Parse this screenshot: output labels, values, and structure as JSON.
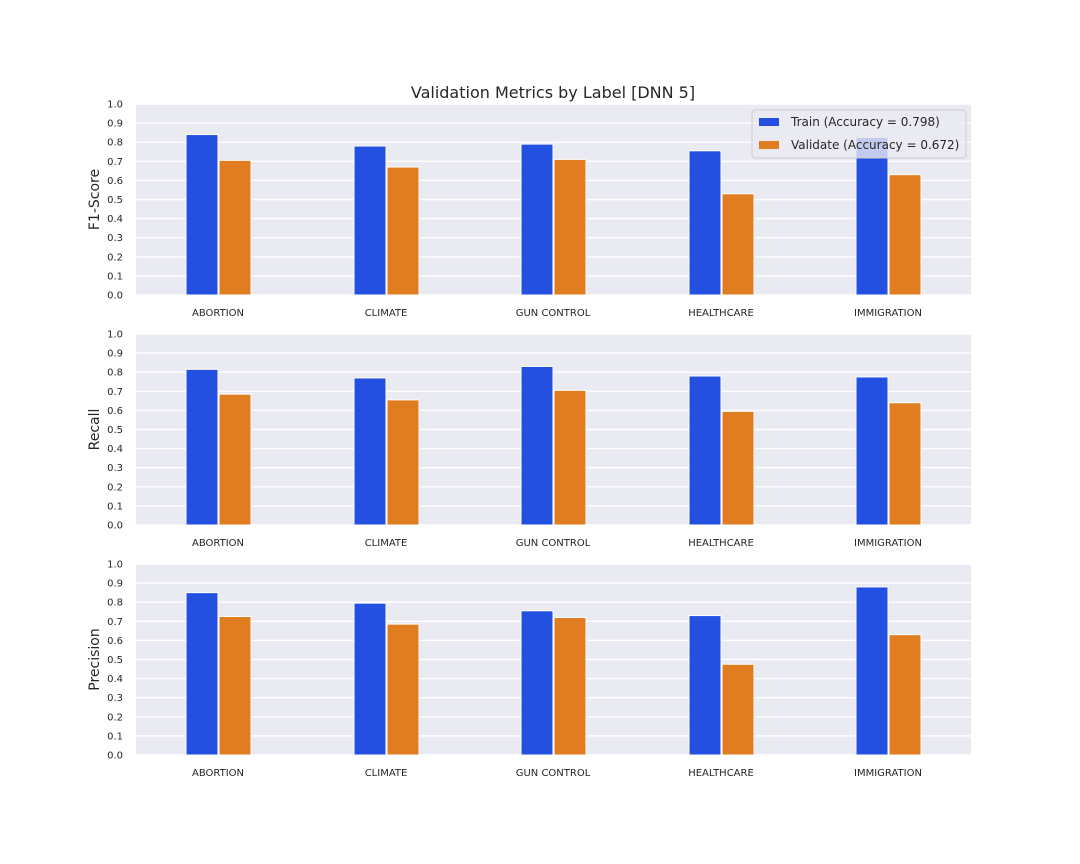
{
  "chart_data": {
    "type": "bar",
    "title": "Validation Metrics by Label [DNN 5]",
    "categories": [
      "ABORTION",
      "CLIMATE",
      "GUN CONTROL",
      "HEALTHCARE",
      "IMMIGRATION"
    ],
    "yticks": [
      "0.0",
      "0.1",
      "0.2",
      "0.3",
      "0.4",
      "0.5",
      "0.6",
      "0.7",
      "0.8",
      "0.9",
      "1.0"
    ],
    "ylim": [
      0,
      1
    ],
    "grid": true,
    "legend_position": "top-right",
    "legend": [
      {
        "label": "Train (Accuracy = 0.798)",
        "color": "#2350e0"
      },
      {
        "label": "Validate (Accuracy = 0.672)",
        "color": "#e07d21"
      }
    ],
    "panels": [
      {
        "ylabel": "F1-Score",
        "series": [
          {
            "name": "Train",
            "color": "#2350e0",
            "values": [
              0.84,
              0.78,
              0.79,
              0.755,
              0.825
            ]
          },
          {
            "name": "Validate",
            "color": "#e07d21",
            "values": [
              0.705,
              0.67,
              0.71,
              0.53,
              0.63
            ]
          }
        ]
      },
      {
        "ylabel": "Recall",
        "series": [
          {
            "name": "Train",
            "color": "#2350e0",
            "values": [
              0.815,
              0.77,
              0.83,
              0.78,
              0.775
            ]
          },
          {
            "name": "Validate",
            "color": "#e07d21",
            "values": [
              0.685,
              0.655,
              0.705,
              0.595,
              0.64
            ]
          }
        ]
      },
      {
        "ylabel": "Precision",
        "series": [
          {
            "name": "Train",
            "color": "#2350e0",
            "values": [
              0.85,
              0.795,
              0.755,
              0.73,
              0.88
            ]
          },
          {
            "name": "Validate",
            "color": "#e07d21",
            "values": [
              0.725,
              0.685,
              0.72,
              0.475,
              0.63
            ]
          }
        ]
      }
    ]
  }
}
